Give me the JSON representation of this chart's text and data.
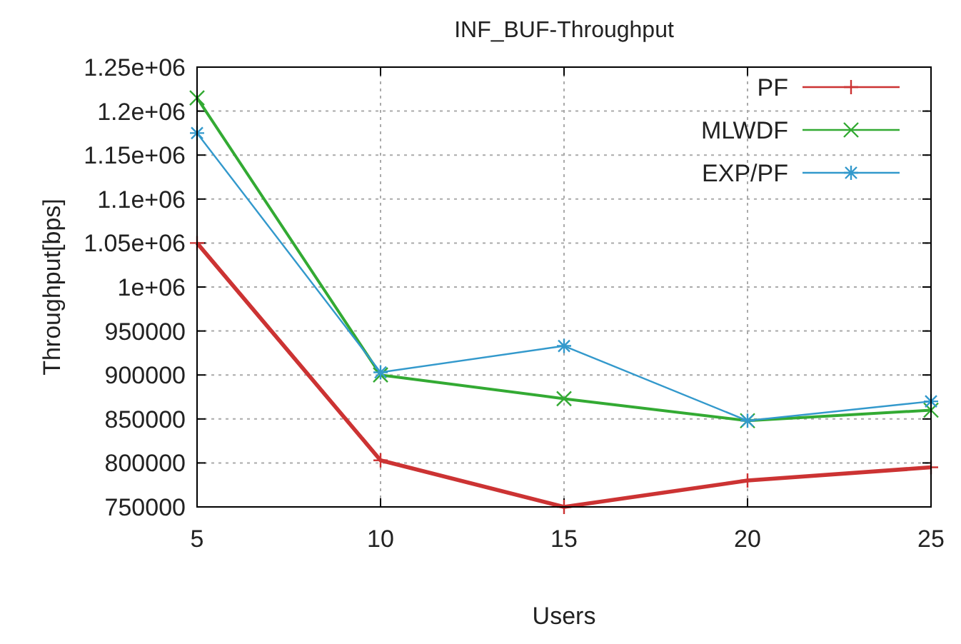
{
  "chart_data": {
    "type": "line",
    "title": "INF_BUF-Throughput",
    "xlabel": "Users",
    "ylabel": "Throughput[bps]",
    "x": [
      5,
      10,
      15,
      20,
      25
    ],
    "xlim": [
      5,
      25
    ],
    "xticks": [
      5,
      10,
      15,
      20,
      25
    ],
    "ylim": [
      750000,
      1250000
    ],
    "yticks": [
      {
        "value": 750000,
        "label": "750000"
      },
      {
        "value": 800000,
        "label": "800000"
      },
      {
        "value": 850000,
        "label": "850000"
      },
      {
        "value": 900000,
        "label": "900000"
      },
      {
        "value": 950000,
        "label": "950000"
      },
      {
        "value": 1000000,
        "label": "1e+06"
      },
      {
        "value": 1050000,
        "label": "1.05e+06"
      },
      {
        "value": 1100000,
        "label": "1.1e+06"
      },
      {
        "value": 1150000,
        "label": "1.15e+06"
      },
      {
        "value": 1200000,
        "label": "1.2e+06"
      },
      {
        "value": 1250000,
        "label": "1.25e+06"
      }
    ],
    "grid": true,
    "legend": "top right",
    "line_style": "solid",
    "series": [
      {
        "name": "PF",
        "color": "#cc3333",
        "marker": "cross",
        "values": [
          1050000,
          803000,
          750000,
          780000,
          795000
        ]
      },
      {
        "name": "MLWDF",
        "color": "#33aa33",
        "marker": "cross",
        "values": [
          1215000,
          900000,
          873000,
          848000,
          860000
        ]
      },
      {
        "name": "EXP/PF",
        "color": "#3399cc",
        "marker": "cross",
        "values": [
          1175000,
          903000,
          933000,
          848000,
          870000
        ]
      }
    ]
  }
}
